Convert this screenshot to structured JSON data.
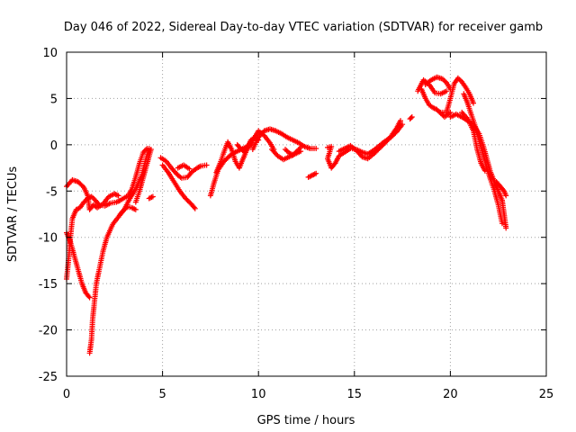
{
  "chart_data": {
    "type": "scatter",
    "title": "Day 046 of 2022, Sidereal Day-to-day VTEC variation (SDTVAR) for receiver gamb",
    "xlabel": "GPS time / hours",
    "ylabel": "SDTVAR / TECUs",
    "xlim": [
      0,
      25
    ],
    "ylim": [
      -25,
      10
    ],
    "xticks": [
      "0",
      "5",
      "10",
      "15",
      "20",
      "25"
    ],
    "yticks": [
      "10",
      "5",
      "0",
      "-5",
      "-10",
      "-15",
      "-20",
      "-25"
    ],
    "grid": true,
    "marker": "plus",
    "color": "#ff0000",
    "series": [
      {
        "name": "arc-1",
        "points": [
          [
            0.0,
            -4.5
          ],
          [
            0.3,
            -3.8
          ],
          [
            0.6,
            -4.0
          ],
          [
            0.9,
            -4.6
          ],
          [
            1.1,
            -5.5
          ],
          [
            1.2,
            -7.0
          ],
          [
            1.4,
            -6.5
          ],
          [
            1.6,
            -6.8
          ],
          [
            1.9,
            -6.4
          ],
          [
            2.2,
            -5.6
          ],
          [
            2.5,
            -5.3
          ],
          [
            2.7,
            -5.5
          ]
        ]
      },
      {
        "name": "arc-2",
        "points": [
          [
            0.0,
            -9.5
          ],
          [
            0.2,
            -10.5
          ],
          [
            0.4,
            -12.0
          ],
          [
            0.6,
            -13.5
          ],
          [
            0.8,
            -15.0
          ],
          [
            1.0,
            -16.0
          ],
          [
            1.2,
            -16.5
          ]
        ]
      },
      {
        "name": "arc-3",
        "points": [
          [
            0.0,
            -14.5
          ],
          [
            0.1,
            -12.5
          ],
          [
            0.2,
            -10.0
          ],
          [
            0.3,
            -8.0
          ],
          [
            0.5,
            -7.0
          ],
          [
            0.7,
            -6.8
          ],
          [
            0.9,
            -6.2
          ],
          [
            1.1,
            -5.8
          ],
          [
            1.3,
            -5.6
          ],
          [
            1.5,
            -6.0
          ],
          [
            1.7,
            -6.5
          ],
          [
            2.0,
            -6.6
          ],
          [
            2.3,
            -6.3
          ],
          [
            2.6,
            -6.2
          ],
          [
            2.8,
            -6.0
          ],
          [
            3.2,
            -5.5
          ],
          [
            3.4,
            -4.8
          ],
          [
            3.6,
            -3.5
          ],
          [
            3.8,
            -2.0
          ],
          [
            4.0,
            -0.8
          ],
          [
            4.2,
            -0.4
          ]
        ]
      },
      {
        "name": "arc-4",
        "points": [
          [
            1.2,
            -22.5
          ],
          [
            1.3,
            -21.0
          ],
          [
            1.35,
            -19.0
          ],
          [
            1.45,
            -17.0
          ],
          [
            1.55,
            -15.0
          ],
          [
            1.7,
            -13.5
          ],
          [
            1.9,
            -11.5
          ],
          [
            2.1,
            -10.0
          ],
          [
            2.4,
            -8.6
          ],
          [
            2.7,
            -7.8
          ],
          [
            3.0,
            -7.0
          ],
          [
            3.3,
            -5.8
          ],
          [
            3.6,
            -4.8
          ],
          [
            3.9,
            -3.4
          ],
          [
            4.1,
            -1.8
          ],
          [
            4.3,
            -0.4
          ]
        ]
      },
      {
        "name": "arc-5",
        "points": [
          [
            2.8,
            -7.5
          ],
          [
            3.0,
            -7.0
          ],
          [
            3.2,
            -6.7
          ],
          [
            3.4,
            -6.8
          ],
          [
            3.6,
            -7.0
          ]
        ]
      },
      {
        "name": "arc-6",
        "points": [
          [
            3.6,
            -6.2
          ],
          [
            3.8,
            -5.0
          ],
          [
            4.0,
            -3.5
          ],
          [
            4.2,
            -2.0
          ],
          [
            4.4,
            -0.5
          ]
        ]
      },
      {
        "name": "arc-7",
        "points": [
          [
            4.3,
            -5.8
          ],
          [
            4.5,
            -5.6
          ]
        ]
      },
      {
        "name": "arc-8",
        "points": [
          [
            4.9,
            -1.4
          ],
          [
            5.2,
            -1.8
          ],
          [
            5.5,
            -2.6
          ],
          [
            5.8,
            -3.3
          ],
          [
            6.0,
            -3.6
          ],
          [
            6.3,
            -3.5
          ],
          [
            6.5,
            -3.0
          ],
          [
            6.8,
            -2.5
          ],
          [
            7.0,
            -2.3
          ],
          [
            7.3,
            -2.2
          ]
        ]
      },
      {
        "name": "arc-9",
        "points": [
          [
            5.0,
            -2.2
          ],
          [
            5.3,
            -3.0
          ],
          [
            5.6,
            -4.0
          ],
          [
            5.9,
            -5.0
          ],
          [
            6.2,
            -5.8
          ],
          [
            6.5,
            -6.4
          ],
          [
            6.7,
            -6.9
          ]
        ]
      },
      {
        "name": "arc-10",
        "points": [
          [
            5.8,
            -2.5
          ],
          [
            6.1,
            -2.2
          ],
          [
            6.4,
            -2.6
          ]
        ]
      },
      {
        "name": "arc-11",
        "points": [
          [
            7.5,
            -5.5
          ],
          [
            7.7,
            -4.0
          ],
          [
            7.9,
            -2.7
          ],
          [
            8.2,
            -1.8
          ],
          [
            8.5,
            -1.2
          ],
          [
            8.8,
            -0.8
          ],
          [
            9.1,
            -0.5
          ],
          [
            9.4,
            -0.2
          ],
          [
            9.7,
            0.5
          ],
          [
            10.0,
            1.5
          ],
          [
            10.3,
            1.0
          ],
          [
            10.6,
            0.2
          ],
          [
            10.8,
            -0.5
          ]
        ]
      },
      {
        "name": "arc-12",
        "points": [
          [
            7.8,
            -3.0
          ],
          [
            8.0,
            -2.0
          ],
          [
            8.2,
            -0.8
          ],
          [
            8.4,
            0.3
          ],
          [
            8.6,
            -0.5
          ],
          [
            8.8,
            -1.8
          ],
          [
            9.0,
            -2.5
          ],
          [
            9.2,
            -1.5
          ],
          [
            9.4,
            -0.5
          ],
          [
            9.6,
            0.5
          ],
          [
            9.8,
            0.8
          ],
          [
            10.0,
            0.5
          ]
        ]
      },
      {
        "name": "arc-13",
        "points": [
          [
            8.9,
            0.0
          ],
          [
            9.1,
            -0.5
          ],
          [
            9.3,
            -0.8
          ],
          [
            9.5,
            -0.2
          ],
          [
            9.7,
            0.2
          ]
        ]
      },
      {
        "name": "arc-14",
        "points": [
          [
            9.7,
            -0.5
          ],
          [
            10.0,
            0.8
          ],
          [
            10.3,
            1.5
          ],
          [
            10.6,
            1.7
          ],
          [
            10.9,
            1.5
          ],
          [
            11.2,
            1.2
          ],
          [
            11.5,
            0.8
          ],
          [
            11.8,
            0.5
          ],
          [
            12.1,
            0.2
          ],
          [
            12.4,
            -0.2
          ],
          [
            12.7,
            -0.4
          ],
          [
            13.0,
            -0.4
          ]
        ]
      },
      {
        "name": "arc-15",
        "points": [
          [
            10.7,
            -0.5
          ],
          [
            11.0,
            -1.2
          ],
          [
            11.3,
            -1.6
          ],
          [
            11.6,
            -1.3
          ],
          [
            11.9,
            -1.0
          ],
          [
            12.2,
            -0.7
          ]
        ]
      },
      {
        "name": "arc-16",
        "points": [
          [
            11.4,
            -0.5
          ],
          [
            11.6,
            -0.9
          ],
          [
            11.8,
            -1.1
          ],
          [
            12.0,
            -0.7
          ],
          [
            12.2,
            -0.3
          ]
        ]
      },
      {
        "name": "arc-17",
        "points": [
          [
            12.6,
            -3.5
          ],
          [
            12.8,
            -3.3
          ],
          [
            13.0,
            -3.1
          ]
        ]
      },
      {
        "name": "arc-18",
        "points": [
          [
            13.6,
            -0.3
          ],
          [
            13.8,
            -0.2
          ],
          [
            13.6,
            -1.5
          ],
          [
            13.8,
            -2.5
          ],
          [
            14.0,
            -2.0
          ],
          [
            14.2,
            -1.2
          ],
          [
            14.5,
            -0.8
          ],
          [
            14.8,
            -0.4
          ],
          [
            15.1,
            -0.5
          ],
          [
            15.4,
            -0.8
          ],
          [
            15.7,
            -1.0
          ],
          [
            16.0,
            -0.6
          ],
          [
            16.3,
            -0.1
          ],
          [
            16.6,
            0.4
          ],
          [
            16.9,
            0.8
          ],
          [
            17.2,
            1.4
          ],
          [
            17.5,
            2.2
          ]
        ]
      },
      {
        "name": "arc-19",
        "points": [
          [
            14.2,
            -0.7
          ],
          [
            14.5,
            -0.4
          ],
          [
            14.8,
            -0.1
          ],
          [
            15.1,
            -0.6
          ],
          [
            15.4,
            -1.3
          ],
          [
            15.7,
            -1.5
          ],
          [
            16.0,
            -1.0
          ],
          [
            16.3,
            -0.4
          ],
          [
            16.6,
            0.2
          ],
          [
            16.9,
            0.9
          ],
          [
            17.2,
            1.8
          ],
          [
            17.4,
            2.6
          ]
        ]
      },
      {
        "name": "arc-20",
        "points": [
          [
            17.9,
            2.8
          ],
          [
            18.0,
            3.0
          ]
        ]
      },
      {
        "name": "arc-21",
        "points": [
          [
            18.3,
            5.8
          ],
          [
            18.6,
            7.0
          ],
          [
            18.9,
            6.5
          ],
          [
            19.2,
            5.6
          ],
          [
            19.5,
            5.5
          ],
          [
            19.8,
            5.8
          ]
        ]
      },
      {
        "name": "arc-22",
        "points": [
          [
            18.5,
            6.0
          ],
          [
            18.7,
            5.0
          ],
          [
            18.9,
            4.3
          ],
          [
            19.1,
            4.0
          ],
          [
            19.3,
            3.8
          ],
          [
            19.5,
            3.4
          ],
          [
            19.7,
            3.0
          ],
          [
            20.0,
            3.5
          ]
        ]
      },
      {
        "name": "arc-23",
        "points": [
          [
            18.7,
            6.5
          ],
          [
            19.0,
            7.0
          ],
          [
            19.3,
            7.3
          ],
          [
            19.6,
            7.1
          ],
          [
            19.8,
            6.7
          ],
          [
            20.0,
            6.0
          ]
        ]
      },
      {
        "name": "arc-24",
        "points": [
          [
            19.5,
            3.5
          ],
          [
            19.8,
            3.5
          ],
          [
            20.0,
            5.0
          ],
          [
            20.2,
            6.6
          ],
          [
            20.4,
            7.2
          ],
          [
            20.6,
            6.8
          ],
          [
            20.8,
            6.2
          ],
          [
            21.0,
            5.5
          ],
          [
            21.2,
            4.5
          ]
        ]
      },
      {
        "name": "arc-25",
        "points": [
          [
            20.0,
            3.0
          ],
          [
            20.3,
            3.3
          ],
          [
            20.6,
            3.0
          ],
          [
            20.9,
            2.6
          ],
          [
            21.2,
            2.2
          ],
          [
            21.5,
            1.2
          ],
          [
            21.7,
            0.0
          ],
          [
            21.9,
            -1.5
          ],
          [
            22.1,
            -3.0
          ],
          [
            22.3,
            -4.0
          ],
          [
            22.5,
            -5.0
          ],
          [
            22.7,
            -6.0
          ],
          [
            22.8,
            -7.5
          ],
          [
            22.9,
            -9.0
          ]
        ]
      },
      {
        "name": "arc-26",
        "points": [
          [
            20.7,
            5.5
          ],
          [
            20.9,
            4.5
          ],
          [
            21.1,
            3.2
          ],
          [
            21.3,
            2.0
          ],
          [
            21.5,
            0.5
          ],
          [
            21.7,
            -1.0
          ],
          [
            21.9,
            -2.5
          ],
          [
            22.1,
            -3.8
          ],
          [
            22.3,
            -5.0
          ],
          [
            22.5,
            -6.5
          ],
          [
            22.6,
            -7.5
          ],
          [
            22.7,
            -8.5
          ]
        ]
      },
      {
        "name": "arc-27",
        "points": [
          [
            20.6,
            3.5
          ],
          [
            20.9,
            2.8
          ],
          [
            21.2,
            1.5
          ],
          [
            21.4,
            -0.5
          ],
          [
            21.6,
            -2.0
          ],
          [
            21.8,
            -2.8
          ]
        ]
      },
      {
        "name": "arc-28",
        "points": [
          [
            22.4,
            -4.0
          ],
          [
            22.6,
            -4.5
          ],
          [
            22.8,
            -5.0
          ],
          [
            22.9,
            -5.5
          ]
        ]
      }
    ]
  }
}
